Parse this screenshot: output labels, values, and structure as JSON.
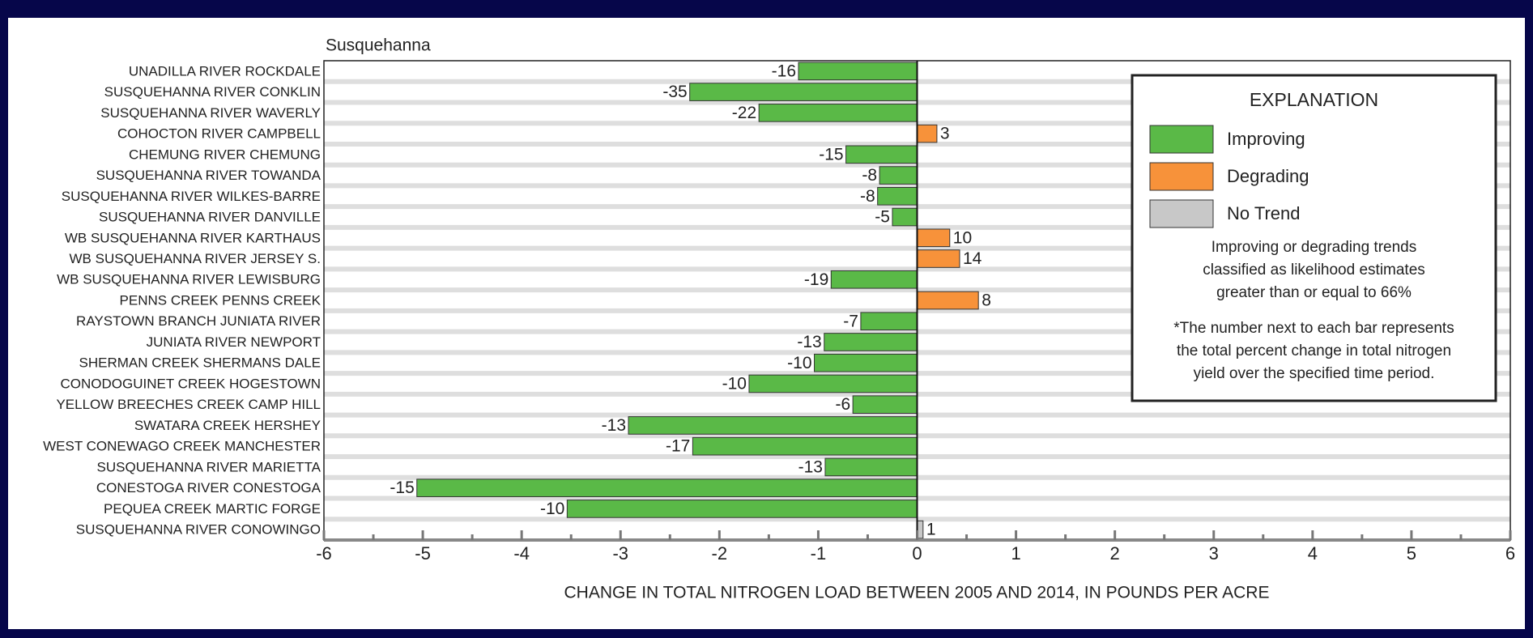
{
  "chart_data": {
    "type": "barh",
    "title": "Susquehanna",
    "xlabel": "CHANGE IN TOTAL NITROGEN LOAD BETWEEN 2005 AND 2014, IN POUNDS PER ACRE",
    "categories": [
      "UNADILLA RIVER ROCKDALE",
      "SUSQUEHANNA RIVER CONKLIN",
      "SUSQUEHANNA RIVER WAVERLY",
      "COHOCTON RIVER CAMPBELL",
      "CHEMUNG RIVER CHEMUNG",
      "SUSQUEHANNA RIVER TOWANDA",
      "SUSQUEHANNA RIVER WILKES-BARRE",
      "SUSQUEHANNA RIVER DANVILLE",
      "WB SUSQUEHANNA RIVER KARTHAUS",
      "WB SUSQUEHANNA RIVER JERSEY S.",
      "WB SUSQUEHANNA RIVER  LEWISBURG",
      "PENNS CREEK  PENNS CREEK",
      "RAYSTOWN BRANCH JUNIATA RIVER",
      "JUNIATA RIVER NEWPORT",
      "SHERMAN CREEK SHERMANS DALE",
      "CONODOGUINET CREEK HOGESTOWN",
      "YELLOW BREECHES CREEK CAMP HILL",
      "SWATARA CREEK HERSHEY",
      "WEST CONEWAGO CREEK MANCHESTER",
      "SUSQUEHANNA RIVER MARIETTA",
      "CONESTOGA RIVER CONESTOGA",
      "PEQUEA CREEK MARTIC FORGE",
      "SUSQUEHANNA RIVER CONOWINGO"
    ],
    "values": [
      -1.2,
      -2.3,
      -1.6,
      0.2,
      -0.72,
      -0.38,
      -0.4,
      -0.25,
      0.33,
      0.43,
      -0.87,
      0.62,
      -0.57,
      -0.94,
      -1.04,
      -1.7,
      -0.65,
      -2.92,
      -2.27,
      -0.93,
      -5.06,
      -3.54,
      0.06
    ],
    "percent_change": [
      -16,
      -35,
      -22,
      3,
      -15,
      -8,
      -8,
      -5,
      10,
      14,
      -19,
      8,
      -7,
      -13,
      -10,
      -10,
      -6,
      -13,
      -17,
      -13,
      -15,
      -10,
      1
    ],
    "colors": [
      "#5ab947",
      "#5ab947",
      "#5ab947",
      "#f7923a",
      "#5ab947",
      "#5ab947",
      "#5ab947",
      "#5ab947",
      "#f7923a",
      "#f7923a",
      "#5ab947",
      "#f7923a",
      "#5ab947",
      "#5ab947",
      "#5ab947",
      "#5ab947",
      "#5ab947",
      "#5ab947",
      "#5ab947",
      "#5ab947",
      "#5ab947",
      "#5ab947",
      "#c8c8c8"
    ],
    "xlim": [
      -6,
      6
    ],
    "xticks": [
      -6,
      -5,
      -4,
      -3,
      -2,
      -1,
      0,
      1,
      2,
      3,
      4,
      5,
      6
    ],
    "xminorticks": [
      -5.5,
      -4.5,
      -3.5,
      -2.5,
      -1.5,
      -0.5,
      0.5,
      1.5,
      2.5,
      3.5,
      4.5,
      5.5
    ],
    "grid": true,
    "legend": {
      "title": "EXPLANATION",
      "items": [
        {
          "name": "Improving",
          "color": "#5ab947"
        },
        {
          "name": "Degrading",
          "color": "#f7923a"
        },
        {
          "name": "No Trend",
          "color": "#c8c8c8"
        }
      ],
      "note1": [
        "Improving or degrading trends",
        "classified as likelihood estimates",
        "greater than or equal to 66%"
      ],
      "note2": [
        "*The number next to each bar represents",
        "the total percent change in total nitrogen",
        "yield over the specified time period."
      ]
    }
  }
}
